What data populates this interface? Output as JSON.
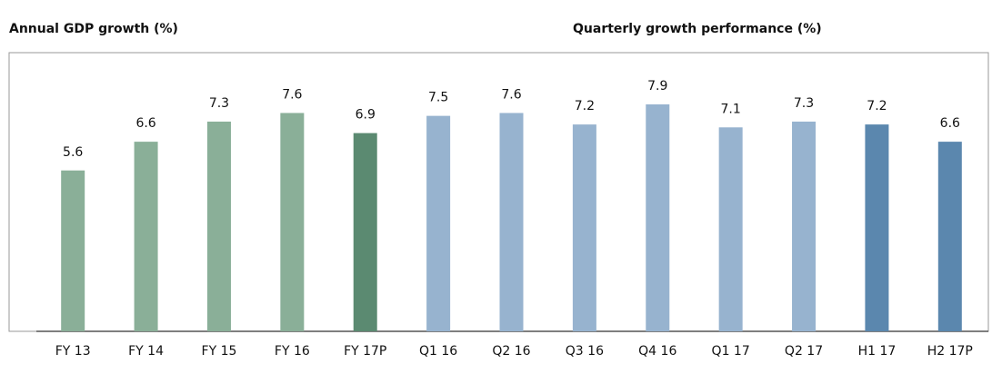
{
  "chart_data": {
    "type": "bar",
    "titles": [
      "Annual GDP growth (%)",
      "Quarterly growth performance (%)"
    ],
    "categories": [
      "FY 13",
      "FY 14",
      "FY 15",
      "FY 16",
      "FY 17P",
      "Q1 16",
      "Q2 16",
      "Q3 16",
      "Q4 16",
      "Q1 17",
      "Q2 17",
      "H1 17",
      "H2 17P"
    ],
    "values": [
      5.6,
      6.6,
      7.3,
      7.6,
      6.9,
      7.5,
      7.6,
      7.2,
      7.9,
      7.1,
      7.3,
      7.2,
      6.6
    ],
    "colors": [
      "#8aaf98",
      "#8aaf98",
      "#8aaf98",
      "#8aaf98",
      "#5b8a71",
      "#97b3cf",
      "#97b3cf",
      "#97b3cf",
      "#97b3cf",
      "#97b3cf",
      "#97b3cf",
      "#5b87ae",
      "#5b87ae"
    ],
    "ylim": [
      0,
      9.7
    ]
  }
}
